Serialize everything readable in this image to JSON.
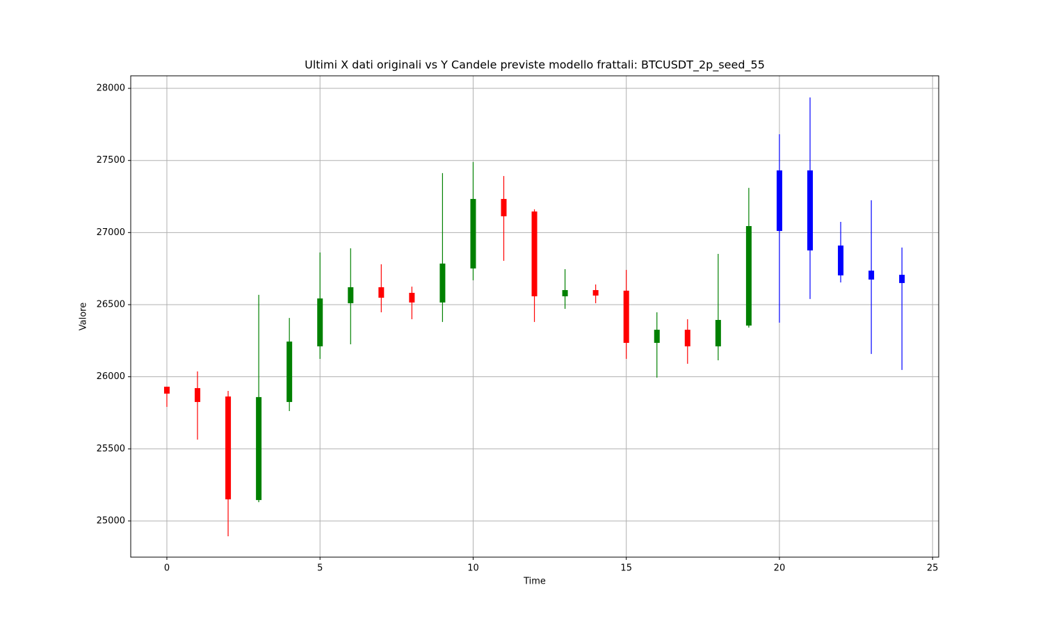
{
  "chart_data": {
    "type": "candlestick",
    "title": "Ultimi X dati originali vs Y Candele previste modello frattali: BTCUSDT_2p_seed_55",
    "x_label": "Time",
    "y_label": "Valore",
    "x": [
      0,
      1,
      2,
      3,
      4,
      5,
      6,
      7,
      8,
      9,
      10,
      11,
      12,
      13,
      14,
      15,
      16,
      17,
      18,
      19,
      20,
      21,
      22,
      23,
      24
    ],
    "open": [
      25931,
      25921,
      25863,
      25145,
      25825,
      26211,
      26510,
      26621,
      26582,
      26515,
      26751,
      27233,
      27146,
      26558,
      26601,
      26597,
      26235,
      26326,
      26211,
      26355,
      27011,
      27431,
      26910,
      26736,
      26707
    ],
    "high": [
      25931,
      26037,
      25902,
      26568,
      26408,
      26862,
      26891,
      26780,
      26625,
      27412,
      27489,
      27392,
      27161,
      26746,
      26640,
      26741,
      26447,
      26399,
      26852,
      27310,
      27682,
      27937,
      27074,
      27224,
      26896
    ],
    "low": [
      25791,
      25564,
      24894,
      25130,
      25762,
      26124,
      26225,
      26447,
      26399,
      26380,
      26669,
      26804,
      26380,
      26471,
      26510,
      26124,
      25994,
      26090,
      26114,
      26341,
      26375,
      26539,
      26654,
      26158,
      26047
    ],
    "close": [
      25883,
      25825,
      25150,
      25859,
      26244,
      26543,
      26621,
      26548,
      26515,
      26785,
      27233,
      27113,
      26558,
      26601,
      26563,
      26235,
      26326,
      26211,
      26394,
      27045,
      27431,
      26876,
      26703,
      26674,
      26650
    ],
    "colors": [
      "red",
      "red",
      "red",
      "green",
      "green",
      "green",
      "green",
      "red",
      "red",
      "green",
      "green",
      "red",
      "red",
      "green",
      "red",
      "red",
      "green",
      "red",
      "green",
      "green",
      "blue",
      "blue",
      "blue",
      "blue",
      "blue"
    ],
    "xlim": [
      -1.18,
      25.2
    ],
    "xticks": [
      0,
      5,
      10,
      15,
      20,
      25
    ],
    "ylim": [
      24749,
      28087
    ],
    "yticks": [
      25000,
      25500,
      26000,
      26500,
      27000,
      27500,
      28000
    ],
    "grid": true
  }
}
